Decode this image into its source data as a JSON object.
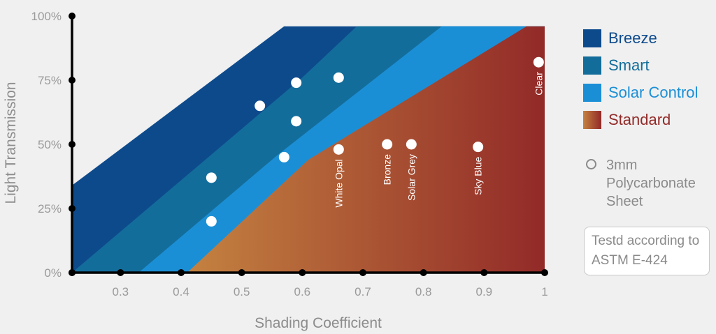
{
  "chart_data": {
    "type": "area",
    "xlabel": "Shading Coefficient",
    "ylabel": "Light Transmission",
    "xlim": [
      0.22,
      1.0
    ],
    "ylim": [
      0,
      100
    ],
    "x_ticks": [
      "0.3",
      "0.4",
      "0.5",
      "0.6",
      "0.7",
      "0.8",
      "0.9",
      "1"
    ],
    "x_tick_values": [
      0.3,
      0.4,
      0.5,
      0.6,
      0.7,
      0.8,
      0.9,
      1.0
    ],
    "y_ticks": [
      "0%",
      "25%",
      "50%",
      "75%",
      "100%"
    ],
    "y_tick_values": [
      0,
      25,
      50,
      75,
      100
    ],
    "bands": [
      {
        "name": "Breeze",
        "color": "#0d4a8c",
        "polygon": [
          [
            0.22,
            0
          ],
          [
            0.22,
            34
          ],
          [
            0.57,
            96
          ],
          [
            1.0,
            96
          ],
          [
            1.0,
            0
          ]
        ]
      },
      {
        "name": "Smart",
        "color": "#136d9b",
        "polygon": [
          [
            0.22,
            0
          ],
          [
            0.6,
            76
          ],
          [
            0.69,
            96
          ],
          [
            1.0,
            96
          ],
          [
            1.0,
            0
          ]
        ]
      },
      {
        "name": "Solar Control",
        "color": "#1b8fd6",
        "polygon": [
          [
            0.33,
            0
          ],
          [
            0.56,
            46
          ],
          [
            0.83,
            96
          ],
          [
            1.0,
            96
          ],
          [
            1.0,
            0
          ]
        ]
      },
      {
        "name": "Standard",
        "color_start": "#c48240",
        "color_end": "#922a28",
        "polygon": [
          [
            0.41,
            0
          ],
          [
            0.61,
            44
          ],
          [
            0.97,
            96
          ],
          [
            1.0,
            96
          ],
          [
            1.0,
            0
          ]
        ]
      }
    ],
    "points": [
      {
        "x": 0.45,
        "y": 37,
        "label": ""
      },
      {
        "x": 0.45,
        "y": 20,
        "label": ""
      },
      {
        "x": 0.53,
        "y": 65,
        "label": ""
      },
      {
        "x": 0.59,
        "y": 74,
        "label": ""
      },
      {
        "x": 0.66,
        "y": 76,
        "label": ""
      },
      {
        "x": 0.59,
        "y": 59,
        "label": ""
      },
      {
        "x": 0.57,
        "y": 45,
        "label": ""
      },
      {
        "x": 0.66,
        "y": 48,
        "label": "White Opal"
      },
      {
        "x": 0.74,
        "y": 50,
        "label": "Bronze"
      },
      {
        "x": 0.78,
        "y": 50,
        "label": "Solar Grey"
      },
      {
        "x": 0.89,
        "y": 49,
        "label": "Sky Blue"
      },
      {
        "x": 0.99,
        "y": 82,
        "label": "Clear"
      }
    ]
  },
  "legend": {
    "items": [
      {
        "label": "Breeze",
        "color": "#0d4a8c",
        "text_color": "#0d4a8c"
      },
      {
        "label": "Smart",
        "color": "#136d9b",
        "text_color": "#136d9b"
      },
      {
        "label": "Solar Control",
        "color": "#1b8fd6",
        "text_color": "#1b8fd6"
      },
      {
        "label": "Standard",
        "color_start": "#c48240",
        "color_end": "#922a28",
        "text_color": "#922a28"
      }
    ],
    "note": "3mm Polycarbonate Sheet"
  },
  "tested_note": "Testd according to ASTM E-424"
}
